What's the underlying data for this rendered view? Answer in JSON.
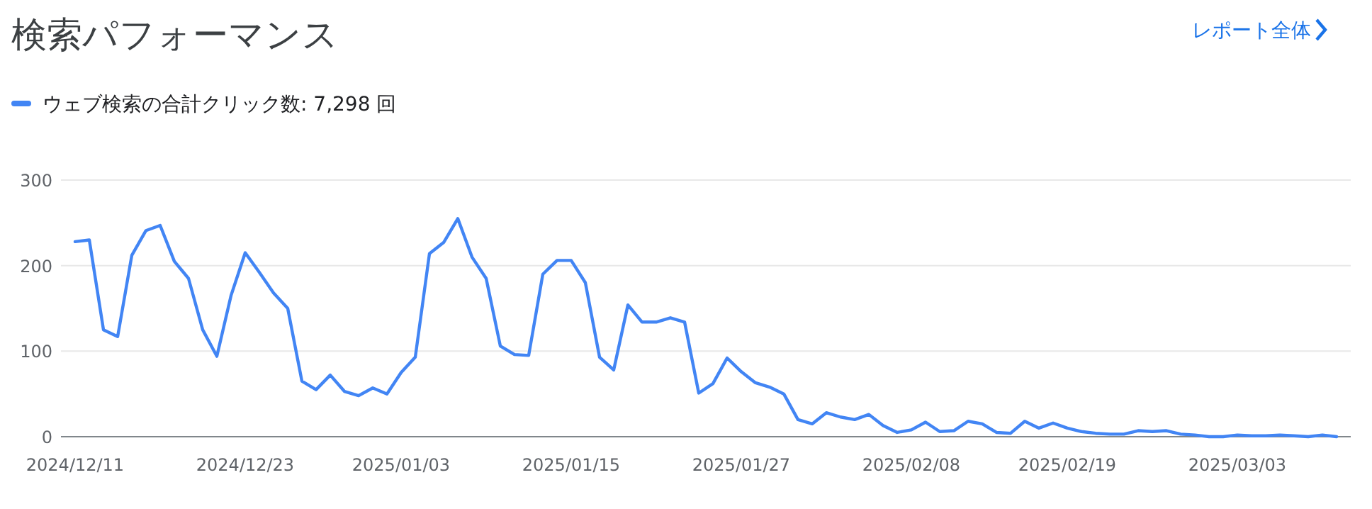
{
  "chart_data": {
    "type": "line",
    "title": "検索パフォーマンス",
    "annotations": [
      "レポート全体"
    ],
    "x": [
      "2024-12-11",
      "2024-12-12",
      "2024-12-13",
      "2024-12-14",
      "2024-12-15",
      "2024-12-16",
      "2024-12-17",
      "2024-12-18",
      "2024-12-19",
      "2024-12-20",
      "2024-12-21",
      "2024-12-22",
      "2024-12-23",
      "2024-12-24",
      "2024-12-25",
      "2024-12-26",
      "2024-12-27",
      "2024-12-28",
      "2024-12-29",
      "2024-12-30",
      "2024-12-31",
      "2025-01-01",
      "2025-01-02",
      "2025-01-03",
      "2025-01-04",
      "2025-01-05",
      "2025-01-06",
      "2025-01-07",
      "2025-01-08",
      "2025-01-09",
      "2025-01-10",
      "2025-01-11",
      "2025-01-12",
      "2025-01-13",
      "2025-01-14",
      "2025-01-15",
      "2025-01-16",
      "2025-01-17",
      "2025-01-18",
      "2025-01-19",
      "2025-01-20",
      "2025-01-21",
      "2025-01-22",
      "2025-01-23",
      "2025-01-24",
      "2025-01-25",
      "2025-01-26",
      "2025-01-27",
      "2025-01-28",
      "2025-01-29",
      "2025-01-30",
      "2025-01-31",
      "2025-02-01",
      "2025-02-02",
      "2025-02-03",
      "2025-02-04",
      "2025-02-05",
      "2025-02-06",
      "2025-02-07",
      "2025-02-08",
      "2025-02-09",
      "2025-02-10",
      "2025-02-11",
      "2025-02-12",
      "2025-02-13",
      "2025-02-14",
      "2025-02-15",
      "2025-02-16",
      "2025-02-17",
      "2025-02-18",
      "2025-02-19",
      "2025-02-20",
      "2025-02-21",
      "2025-02-22",
      "2025-02-23",
      "2025-02-24",
      "2025-02-25",
      "2025-02-26",
      "2025-02-27",
      "2025-02-28",
      "2025-03-01",
      "2025-03-02",
      "2025-03-03",
      "2025-03-04",
      "2025-03-05",
      "2025-03-06",
      "2025-03-07",
      "2025-03-08",
      "2025-03-09",
      "2025-03-10"
    ],
    "series": [
      {
        "name": "ウェブ検索の合計クリック数: 7,298 回",
        "color": "#4285f4",
        "values": [
          228,
          230,
          125,
          117,
          212,
          241,
          247,
          205,
          185,
          125,
          94,
          165,
          215,
          192,
          168,
          150,
          65,
          55,
          72,
          53,
          48,
          57,
          50,
          75,
          93,
          214,
          227,
          255,
          210,
          185,
          106,
          96,
          95,
          190,
          206,
          206,
          180,
          93,
          78,
          154,
          134,
          134,
          139,
          134,
          51,
          62,
          92,
          76,
          63,
          58,
          50,
          20,
          15,
          28,
          23,
          20,
          26,
          13,
          5,
          8,
          17,
          6,
          7,
          18,
          15,
          5,
          4,
          18,
          10,
          16,
          10,
          6,
          4,
          3,
          3,
          7,
          6,
          7,
          3,
          2,
          0,
          0,
          2,
          1,
          1,
          2,
          1,
          0,
          2,
          0
        ]
      }
    ],
    "xlim": [
      "2024-12-10",
      "2025-03-11"
    ],
    "xticks": [
      {
        "value": "2024-12-11",
        "label": "2024/12/11"
      },
      {
        "value": "2024-12-23",
        "label": "2024/12/23"
      },
      {
        "value": "2025-01-03",
        "label": "2025/01/03"
      },
      {
        "value": "2025-01-15",
        "label": "2025/01/15"
      },
      {
        "value": "2025-01-27",
        "label": "2025/01/27"
      },
      {
        "value": "2025-02-08",
        "label": "2025/02/08"
      },
      {
        "value": "2025-02-19",
        "label": "2025/02/19"
      },
      {
        "value": "2025-03-03",
        "label": "2025/03/03"
      }
    ],
    "ylim": [
      0,
      300
    ],
    "yticks": [
      0,
      100,
      200,
      300
    ],
    "grid": "y",
    "legend": "top left",
    "marker": "none",
    "line_style": "solid"
  }
}
